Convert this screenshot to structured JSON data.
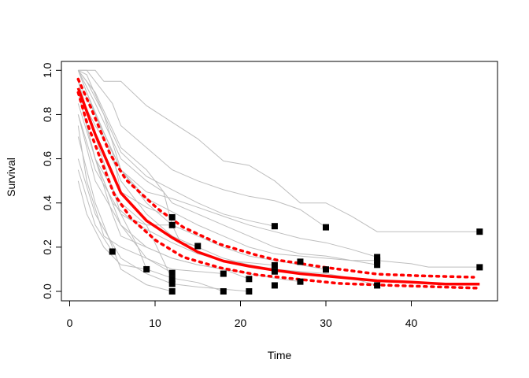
{
  "chart_data": {
    "type": "line",
    "title": "",
    "xlabel": "Time",
    "ylabel": "Survival",
    "xlim": [
      0,
      48
    ],
    "ylim": [
      0,
      1
    ],
    "xticks": [
      "0",
      "10",
      "20",
      "30",
      "40"
    ],
    "xtick_values": [
      0,
      10,
      20,
      30,
      40
    ],
    "yticks": [
      "0.0",
      "0.2",
      "0.4",
      "0.6",
      "0.8",
      "1.0"
    ],
    "ytick_values": [
      0,
      0.2,
      0.4,
      0.6,
      0.8,
      1.0
    ],
    "grid": false,
    "colors": {
      "individual": "#bebebe",
      "mean": "#ff0000",
      "censor": "#000000"
    },
    "individual_curves": [
      [
        [
          1,
          1
        ],
        [
          3,
          1
        ],
        [
          4,
          0.95
        ],
        [
          6,
          0.95
        ],
        [
          9,
          0.84
        ],
        [
          15,
          0.69
        ],
        [
          18,
          0.59
        ],
        [
          21,
          0.57
        ],
        [
          24,
          0.5
        ],
        [
          27,
          0.4
        ],
        [
          30,
          0.4
        ],
        [
          33,
          0.34
        ],
        [
          36,
          0.27
        ],
        [
          48,
          0.27
        ]
      ],
      [
        [
          1,
          1
        ],
        [
          2,
          1
        ],
        [
          3,
          0.95
        ],
        [
          5,
          0.85
        ],
        [
          6,
          0.75
        ],
        [
          9,
          0.65
        ],
        [
          12,
          0.55
        ],
        [
          15,
          0.5
        ],
        [
          18,
          0.46
        ],
        [
          21,
          0.43
        ],
        [
          24,
          0.41
        ],
        [
          27,
          0.37
        ],
        [
          30,
          0.29
        ]
      ],
      [
        [
          1,
          1
        ],
        [
          2,
          0.95
        ],
        [
          4,
          0.8
        ],
        [
          6,
          0.63
        ],
        [
          9,
          0.52
        ],
        [
          12,
          0.46
        ],
        [
          15,
          0.4
        ],
        [
          18,
          0.35
        ],
        [
          21,
          0.32
        ],
        [
          24,
          0.295
        ]
      ],
      [
        [
          1,
          0.95
        ],
        [
          3,
          0.8
        ],
        [
          6,
          0.55
        ],
        [
          9,
          0.45
        ],
        [
          12,
          0.42
        ],
        [
          15,
          0.38
        ],
        [
          18,
          0.34
        ],
        [
          21,
          0.3
        ],
        [
          24,
          0.27
        ],
        [
          27,
          0.24
        ],
        [
          30,
          0.22
        ],
        [
          33,
          0.19
        ],
        [
          36,
          0.155
        ]
      ],
      [
        [
          1,
          1
        ],
        [
          2,
          0.9
        ],
        [
          4,
          0.72
        ],
        [
          6,
          0.55
        ],
        [
          9,
          0.42
        ],
        [
          12,
          0.36
        ],
        [
          15,
          0.3
        ],
        [
          18,
          0.25
        ],
        [
          21,
          0.2
        ],
        [
          24,
          0.17
        ],
        [
          27,
          0.16
        ],
        [
          33,
          0.14
        ],
        [
          36,
          0.14
        ],
        [
          40,
          0.125
        ],
        [
          42,
          0.11
        ],
        [
          48,
          0.11
        ]
      ],
      [
        [
          1,
          0.9
        ],
        [
          3,
          0.75
        ],
        [
          5,
          0.63
        ],
        [
          6,
          0.45
        ],
        [
          9,
          0.38
        ],
        [
          12,
          0.335
        ]
      ],
      [
        [
          1,
          0.85
        ],
        [
          3,
          0.6
        ],
        [
          5,
          0.4
        ],
        [
          7,
          0.33
        ],
        [
          9,
          0.3
        ],
        [
          12,
          0.3
        ]
      ],
      [
        [
          1,
          1
        ],
        [
          3,
          0.85
        ],
        [
          6,
          0.6
        ],
        [
          9,
          0.5
        ],
        [
          11,
          0.45
        ],
        [
          12,
          0.3
        ],
        [
          13,
          0.22
        ],
        [
          15,
          0.205
        ]
      ],
      [
        [
          1,
          0.8
        ],
        [
          3,
          0.55
        ],
        [
          6,
          0.35
        ],
        [
          9,
          0.28
        ],
        [
          12,
          0.22
        ],
        [
          15,
          0.17
        ],
        [
          18,
          0.14
        ],
        [
          21,
          0.13
        ],
        [
          24,
          0.118
        ]
      ],
      [
        [
          1,
          0.75
        ],
        [
          2,
          0.5
        ],
        [
          4,
          0.25
        ],
        [
          6,
          0.2
        ],
        [
          9,
          0.15
        ],
        [
          12,
          0.1
        ],
        [
          15,
          0.09
        ],
        [
          18,
          0.08
        ]
      ],
      [
        [
          1,
          0.55
        ],
        [
          3,
          0.3
        ],
        [
          5,
          0.18
        ]
      ],
      [
        [
          1,
          0.5
        ],
        [
          2,
          0.35
        ],
        [
          4,
          0.2
        ],
        [
          6,
          0.12
        ],
        [
          9,
          0.1
        ]
      ],
      [
        [
          1,
          0.9
        ],
        [
          3,
          0.6
        ],
        [
          5,
          0.35
        ],
        [
          6,
          0.25
        ],
        [
          9,
          0.2
        ],
        [
          12,
          0.15
        ],
        [
          15,
          0.12
        ],
        [
          18,
          0.1
        ],
        [
          21,
          0.08
        ],
        [
          24,
          0.06
        ],
        [
          27,
          0.044
        ]
      ],
      [
        [
          1,
          0.95
        ],
        [
          3,
          0.7
        ],
        [
          6,
          0.35
        ],
        [
          8,
          0.2
        ],
        [
          9,
          0.1
        ],
        [
          12,
          0.06
        ],
        [
          15,
          0.04
        ],
        [
          18,
          0.0
        ]
      ],
      [
        [
          1,
          0.7
        ],
        [
          3,
          0.4
        ],
        [
          5,
          0.2
        ],
        [
          6,
          0.1
        ],
        [
          9,
          0.03
        ],
        [
          12,
          0.0
        ]
      ],
      [
        [
          1,
          1
        ],
        [
          3,
          0.8
        ],
        [
          6,
          0.5
        ],
        [
          9,
          0.35
        ],
        [
          12,
          0.25
        ],
        [
          15,
          0.2
        ],
        [
          18,
          0.15
        ],
        [
          21,
          0.12
        ],
        [
          24,
          0.1
        ],
        [
          27,
          0.09
        ],
        [
          30,
          0.08
        ],
        [
          33,
          0.06
        ],
        [
          36,
          0.027
        ]
      ],
      [
        [
          1,
          1
        ],
        [
          3,
          0.9
        ],
        [
          6,
          0.65
        ],
        [
          9,
          0.55
        ],
        [
          12,
          0.4
        ],
        [
          15,
          0.35
        ],
        [
          18,
          0.3
        ],
        [
          21,
          0.25
        ],
        [
          24,
          0.2
        ],
        [
          27,
          0.17
        ],
        [
          30,
          0.16
        ],
        [
          33,
          0.14
        ],
        [
          36,
          0.12
        ]
      ],
      [
        [
          1,
          0.8
        ],
        [
          3,
          0.5
        ],
        [
          6,
          0.3
        ],
        [
          9,
          0.15
        ],
        [
          12,
          0.083
        ]
      ],
      [
        [
          1,
          0.6
        ],
        [
          3,
          0.35
        ],
        [
          6,
          0.15
        ],
        [
          9,
          0.08
        ],
        [
          12,
          0.034
        ],
        [
          15,
          0.02
        ],
        [
          21,
          0.0
        ]
      ],
      [
        [
          1,
          0.9
        ],
        [
          3,
          0.6
        ],
        [
          6,
          0.3
        ],
        [
          9,
          0.2
        ],
        [
          12,
          0.15
        ],
        [
          15,
          0.12
        ],
        [
          18,
          0.1
        ],
        [
          21,
          0.056
        ]
      ],
      [
        [
          1,
          1
        ],
        [
          2,
          0.98
        ],
        [
          4,
          0.8
        ],
        [
          6,
          0.55
        ],
        [
          9,
          0.4
        ],
        [
          12,
          0.3
        ],
        [
          15,
          0.25
        ],
        [
          18,
          0.2
        ],
        [
          21,
          0.16
        ],
        [
          24,
          0.14
        ],
        [
          27,
          0.12
        ],
        [
          30,
          0.099
        ]
      ],
      [
        [
          1,
          0.9
        ],
        [
          3,
          0.6
        ],
        [
          6,
          0.4
        ],
        [
          9,
          0.3
        ],
        [
          12,
          0.055
        ]
      ]
    ],
    "mean_curve": [
      [
        1,
        0.92
      ],
      [
        3,
        0.71
      ],
      [
        6,
        0.445
      ],
      [
        9,
        0.32
      ],
      [
        12,
        0.243
      ],
      [
        15,
        0.178
      ],
      [
        18,
        0.137
      ],
      [
        21,
        0.114
      ],
      [
        24,
        0.096
      ],
      [
        27,
        0.08
      ],
      [
        31.5,
        0.064
      ],
      [
        36,
        0.048
      ],
      [
        40,
        0.042
      ],
      [
        44,
        0.033
      ],
      [
        48,
        0.033
      ]
    ],
    "upper_ci": [
      [
        1,
        0.96
      ],
      [
        2.5,
        0.83
      ],
      [
        4.75,
        0.62
      ],
      [
        6.6,
        0.505
      ],
      [
        10.3,
        0.374
      ],
      [
        13.3,
        0.29
      ],
      [
        17.6,
        0.213
      ],
      [
        21.9,
        0.164
      ],
      [
        24.2,
        0.142
      ],
      [
        26.2,
        0.131
      ],
      [
        29.6,
        0.11
      ],
      [
        36,
        0.078
      ],
      [
        40.7,
        0.071
      ],
      [
        47.3,
        0.064
      ]
    ],
    "lower_ci": [
      [
        1,
        0.9
      ],
      [
        2,
        0.766
      ],
      [
        3.5,
        0.61
      ],
      [
        5.2,
        0.44
      ],
      [
        7.2,
        0.33
      ],
      [
        10.1,
        0.23
      ],
      [
        13.3,
        0.155
      ],
      [
        17.6,
        0.107
      ],
      [
        21.9,
        0.075
      ],
      [
        24.3,
        0.065
      ],
      [
        31.5,
        0.036
      ],
      [
        37.6,
        0.027
      ],
      [
        47.6,
        0.015
      ]
    ],
    "censor_points": [
      [
        5,
        0.18
      ],
      [
        9,
        0.1
      ],
      [
        12,
        0.335
      ],
      [
        12,
        0.3
      ],
      [
        12,
        0.083
      ],
      [
        12,
        0.055
      ],
      [
        12,
        0.034
      ],
      [
        12,
        0
      ],
      [
        15,
        0.205
      ],
      [
        18,
        0.08
      ],
      [
        18,
        0
      ],
      [
        21,
        0.056
      ],
      [
        21,
        0
      ],
      [
        24,
        0.295
      ],
      [
        24,
        0.118
      ],
      [
        24,
        0.09
      ],
      [
        24,
        0.027
      ],
      [
        27,
        0.134
      ],
      [
        27,
        0.044
      ],
      [
        30,
        0.29
      ],
      [
        30,
        0.099
      ],
      [
        36,
        0.155
      ],
      [
        36,
        0.14
      ],
      [
        36,
        0.12
      ],
      [
        36,
        0.027
      ],
      [
        48,
        0.27
      ],
      [
        48,
        0.109
      ]
    ]
  }
}
